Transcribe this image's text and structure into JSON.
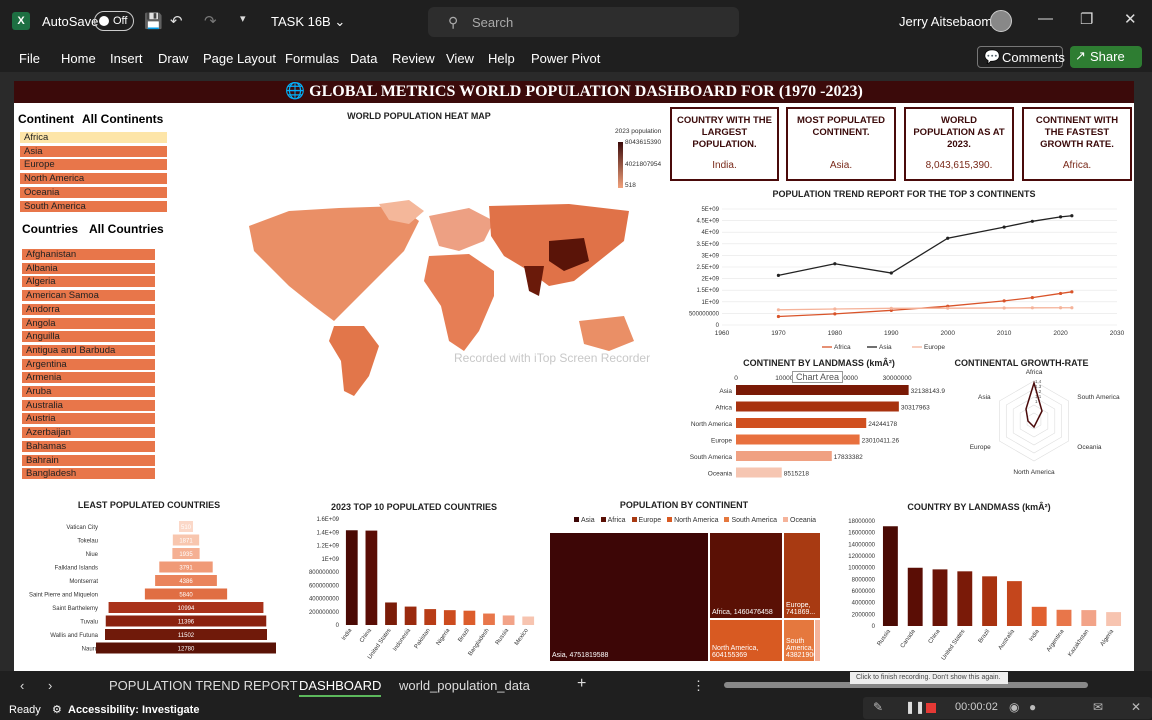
{
  "app": {
    "autosave": "AutoSave",
    "toggle": "Off",
    "filename": "TASK 16B",
    "search_placeholder": "Search",
    "user": "Jerry Aitsebaomo"
  },
  "menu": [
    "File",
    "Home",
    "Insert",
    "Draw",
    "Page Layout",
    "Formulas",
    "Data",
    "Review",
    "View",
    "Help",
    "Power Pivot"
  ],
  "buttons": {
    "comments": "Comments",
    "share": "Share"
  },
  "banner": "GLOBAL METRICS WORLD POPULATION DASHBOARD FOR  (1970 -2023)",
  "continent_slicer": {
    "title": "Continent",
    "all": "All Continents",
    "items": [
      "Africa",
      "Asia",
      "Europe",
      "North America",
      "Oceania",
      "South America"
    ]
  },
  "country_slicer": {
    "title": "Countries",
    "all": "All Countries",
    "items": [
      "Afghanistan",
      "Albania",
      "Algeria",
      "American Samoa",
      "Andorra",
      "Angola",
      "Anguilla",
      "Antigua and Barbuda",
      "Argentina",
      "Armenia",
      "Aruba",
      "Australia",
      "Austria",
      "Azerbaijan",
      "Bahamas",
      "Bahrain",
      "Bangladesh"
    ]
  },
  "heatmap": {
    "title": "WORLD POPULATION HEAT MAP",
    "legend_title": "2023 population",
    "legend_max": "8043615390",
    "legend_mid": "4021807954",
    "legend_min": "518"
  },
  "cards": [
    {
      "title": "COUNTRY WITH THE LARGEST POPULATION.",
      "value": "India."
    },
    {
      "title": "MOST POPULATED CONTINENT.",
      "value": "Asia."
    },
    {
      "title": "WORLD POPULATION AS AT 2023.",
      "value": "8,043,615,390."
    },
    {
      "title": "CONTINENT WITH THE FASTEST GROWTH RATE.",
      "value": "Africa."
    }
  ],
  "watermark": "Recorded with iTop Screen Recorder",
  "chart_area_tip": "Chart Area",
  "chart_data": [
    {
      "type": "line",
      "title": "POPULATION TREND REPORT FOR THE TOP 3 CONTINENTS",
      "x": [
        1970,
        1980,
        1990,
        2000,
        2010,
        2015,
        2020,
        2022
      ],
      "xticks": [
        "1960",
        "1970",
        "1980",
        "1990",
        "2000",
        "2010",
        "2020",
        "2030"
      ],
      "yticks": [
        "0",
        "500000000",
        "1E+09",
        "1.5E+09",
        "2E+09",
        "2.5E+09",
        "3E+09",
        "3.5E+09",
        "4E+09",
        "4.5E+09",
        "5E+09"
      ],
      "ylim": [
        0,
        5000000000
      ],
      "series": [
        {
          "name": "Africa",
          "color": "#d9542a",
          "values": [
            365000000,
            480000000,
            630000000,
            810000000,
            1040000000,
            1180000000,
            1360000000,
            1430000000
          ]
        },
        {
          "name": "Asia",
          "color": "#222222",
          "values": [
            2140000000,
            2640000000,
            2240000000,
            3740000000,
            4220000000,
            4470000000,
            4660000000,
            4710000000
          ]
        },
        {
          "name": "Europe",
          "color": "#f5b39a",
          "values": [
            655000000,
            690000000,
            720000000,
            725000000,
            735000000,
            741000000,
            745000000,
            742000000
          ]
        }
      ]
    },
    {
      "type": "bar",
      "title": "CONTINENT BY LANDMASS (kmÂ²)",
      "categories": [
        "Asia",
        "Africa",
        "North America",
        "Europe",
        "South America",
        "Oceania"
      ],
      "values": [
        32138143.9,
        30317963,
        24244178,
        23010411.26,
        17833382,
        8515218
      ],
      "labels": [
        "32138143.9",
        "30317963",
        "24244178",
        "23010411.26",
        "17833382",
        "8515218"
      ],
      "xticks": [
        "0",
        "10000000",
        "20000000",
        "30000000"
      ]
    },
    {
      "type": "radar",
      "title": "CONTINENTAL GROWTH-RATE",
      "categories": [
        "Africa",
        "South America",
        "Oceania",
        "North America",
        "Europe",
        "Asia"
      ],
      "ticks": [
        "1.4",
        "1.3",
        "1.2",
        "1.1",
        "1"
      ]
    },
    {
      "type": "bar",
      "title": "LEAST POPULATED COUNTRIES",
      "categories": [
        "Vatican City",
        "Tokelau",
        "Niue",
        "Falkland Islands",
        "Montserrat",
        "Saint Pierre and Miquelon",
        "Saint Barthelemy",
        "Tuvalu",
        "Wallis and Futuna",
        "Nauru"
      ],
      "values": [
        510,
        1871,
        1935,
        3791,
        4386,
        5840,
        10994,
        11396,
        11502,
        12780
      ],
      "labels": [
        "510",
        "1871",
        "1935",
        "3791",
        "4386",
        "5840",
        "10994",
        "11396",
        "11502",
        "12780"
      ]
    },
    {
      "type": "bar",
      "title": "2023 TOP 10 POPULATED COUNTRIES",
      "categories": [
        "India",
        "China",
        "United States",
        "Indonesia",
        "Pakistan",
        "Nigeria",
        "Brazil",
        "Bangladesh",
        "Russia",
        "Mexico"
      ],
      "values": [
        1430000000,
        1425000000,
        340000000,
        278000000,
        240000000,
        224000000,
        216000000,
        173000000,
        144000000,
        128000000
      ],
      "yticks": [
        "0",
        "200000000",
        "400000000",
        "600000000",
        "800000000",
        "1E+09",
        "1.2E+09",
        "1.4E+09",
        "1.6E+09"
      ],
      "ylim": [
        0,
        1600000000
      ]
    },
    {
      "type": "treemap",
      "title": "POPULATION BY CONTINENT",
      "legend": [
        "Asia",
        "Africa",
        "Europe",
        "North America",
        "South America",
        "Oceania"
      ],
      "labels": {
        "asia": "Asia, 4751819588",
        "africa": "Africa, 1460476458",
        "europe": "Europe, 741869...",
        "north_america": "North America, 604155369",
        "south_america": "South America, 438219009"
      }
    },
    {
      "type": "bar",
      "title": "COUNTRY BY LANDMASS (kmÂ²)",
      "categories": [
        "Russia",
        "Canada",
        "China",
        "United States",
        "Brazil",
        "Australia",
        "India",
        "Argentina",
        "Kazakhstan",
        "Algeria"
      ],
      "values": [
        17098242,
        9984670,
        9706961,
        9372610,
        8515767,
        7692024,
        3287590,
        2780400,
        2724900,
        2381741
      ],
      "yticks": [
        "0",
        "2000000",
        "4000000",
        "6000000",
        "8000000",
        "10000000",
        "12000000",
        "14000000",
        "16000000",
        "18000000"
      ],
      "ylim": [
        0,
        18000000
      ]
    }
  ],
  "sheet_tabs": [
    "POPULATION TREND REPORT",
    "DASHBOARD",
    "world_population_data"
  ],
  "status": {
    "ready": "Ready",
    "accessibility": "Accessibility: Investigate",
    "timer": "00:00:02",
    "tooltip": "Click to finish recording.  Don't show this again."
  }
}
